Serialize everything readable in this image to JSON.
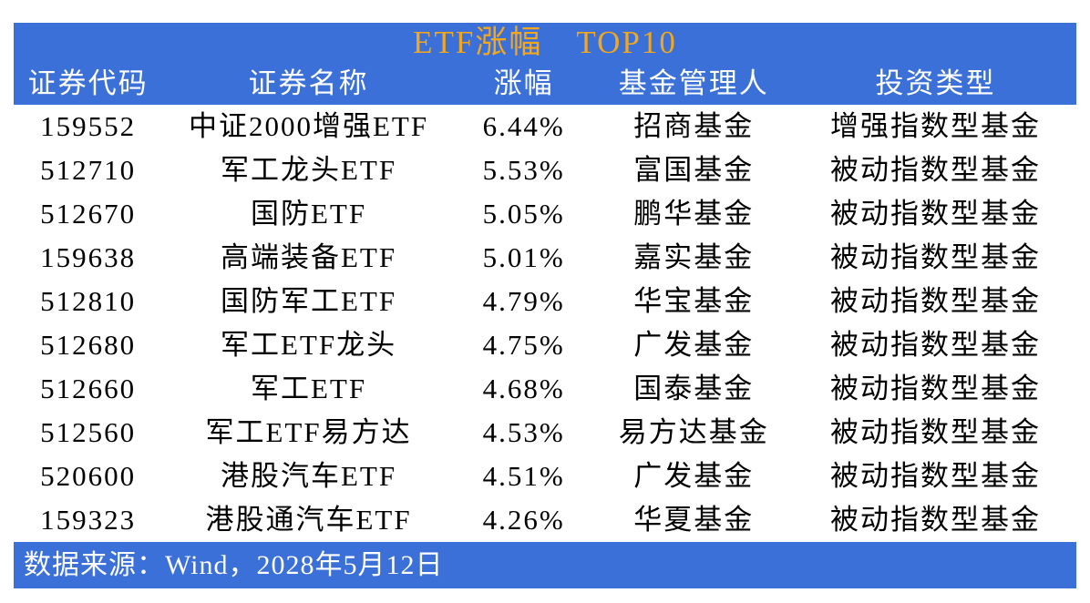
{
  "title": "ETF涨幅　TOP10",
  "colors": {
    "page_bg": "#FFFFFF",
    "header_bg": "#3B70D8",
    "title_text": "#F2A71D",
    "header_text": "#FFFFFF",
    "body_text": "#000000",
    "footer_bg": "#3B70D8",
    "footer_text": "#FFFFFF"
  },
  "table": {
    "columns": [
      {
        "key": "code",
        "label": "证券代码"
      },
      {
        "key": "name",
        "label": "证券名称"
      },
      {
        "key": "change",
        "label": "涨幅"
      },
      {
        "key": "manager",
        "label": "基金管理人"
      },
      {
        "key": "type",
        "label": "投资类型"
      }
    ],
    "rows": [
      {
        "code": "159552",
        "name": "中证2000增强ETF",
        "change": "6.44%",
        "manager": "招商基金",
        "type": "增强指数型基金"
      },
      {
        "code": "512710",
        "name": "军工龙头ETF",
        "change": "5.53%",
        "manager": "富国基金",
        "type": "被动指数型基金"
      },
      {
        "code": "512670",
        "name": "国防ETF",
        "change": "5.05%",
        "manager": "鹏华基金",
        "type": "被动指数型基金"
      },
      {
        "code": "159638",
        "name": "高端装备ETF",
        "change": "5.01%",
        "manager": "嘉实基金",
        "type": "被动指数型基金"
      },
      {
        "code": "512810",
        "name": "国防军工ETF",
        "change": "4.79%",
        "manager": "华宝基金",
        "type": "被动指数型基金"
      },
      {
        "code": "512680",
        "name": "军工ETF龙头",
        "change": "4.75%",
        "manager": "广发基金",
        "type": "被动指数型基金"
      },
      {
        "code": "512660",
        "name": "军工ETF",
        "change": "4.68%",
        "manager": "国泰基金",
        "type": "被动指数型基金"
      },
      {
        "code": "512560",
        "name": "军工ETF易方达",
        "change": "4.53%",
        "manager": "易方达基金",
        "type": "被动指数型基金"
      },
      {
        "code": "520600",
        "name": "港股汽车ETF",
        "change": "4.51%",
        "manager": "广发基金",
        "type": "被动指数型基金"
      },
      {
        "code": "159323",
        "name": "港股通汽车ETF",
        "change": "4.26%",
        "manager": "华夏基金",
        "type": "被动指数型基金"
      }
    ]
  },
  "footer": {
    "source": "数据来源：Wind，2028年5月12日"
  },
  "chart_data": {
    "type": "table",
    "title": "ETF涨幅 TOP10",
    "columns": [
      "证券代码",
      "证券名称",
      "涨幅",
      "基金管理人",
      "投资类型"
    ],
    "rows": [
      [
        "159552",
        "中证2000增强ETF",
        "6.44%",
        "招商基金",
        "增强指数型基金"
      ],
      [
        "512710",
        "军工龙头ETF",
        "5.53%",
        "富国基金",
        "被动指数型基金"
      ],
      [
        "512670",
        "国防ETF",
        "5.05%",
        "鹏华基金",
        "被动指数型基金"
      ],
      [
        "159638",
        "高端装备ETF",
        "5.01%",
        "嘉实基金",
        "被动指数型基金"
      ],
      [
        "512810",
        "国防军工ETF",
        "4.79%",
        "华宝基金",
        "被动指数型基金"
      ],
      [
        "512680",
        "军工ETF龙头",
        "4.75%",
        "广发基金",
        "被动指数型基金"
      ],
      [
        "512660",
        "军工ETF",
        "4.68%",
        "国泰基金",
        "被动指数型基金"
      ],
      [
        "512560",
        "军工ETF易方达",
        "4.53%",
        "易方达基金",
        "被动指数型基金"
      ],
      [
        "520600",
        "港股汽车ETF",
        "4.51%",
        "广发基金",
        "被动指数型基金"
      ],
      [
        "159323",
        "港股通汽车ETF",
        "4.26%",
        "华夏基金",
        "被动指数型基金"
      ]
    ],
    "change_values_pct": [
      6.44,
      5.53,
      5.05,
      5.01,
      4.79,
      4.75,
      4.68,
      4.53,
      4.51,
      4.26
    ],
    "source": "数据来源：Wind，2028年5月12日"
  }
}
